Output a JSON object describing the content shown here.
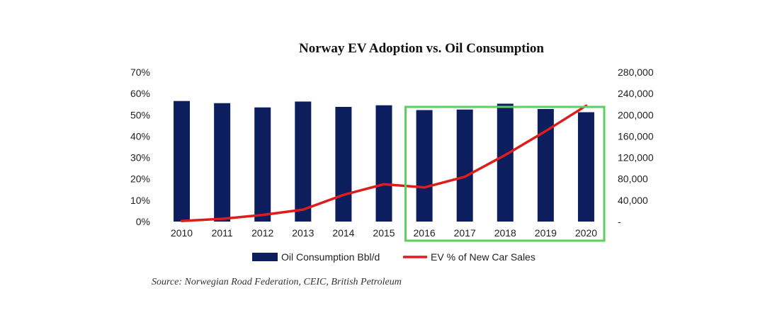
{
  "chart_data": {
    "type": "bar",
    "title": "Norway EV Adoption vs. Oil Consumption",
    "categories": [
      "2010",
      "2011",
      "2012",
      "2013",
      "2014",
      "2015",
      "2016",
      "2017",
      "2018",
      "2019",
      "2020"
    ],
    "series": [
      {
        "name": "Oil Consumption Bbl/d",
        "type": "bar",
        "axis": "right",
        "color": "#0c1e5e",
        "values": [
          226000,
          222000,
          214000,
          225000,
          215000,
          218000,
          209000,
          210000,
          221000,
          211000,
          205000
        ]
      },
      {
        "name": "EV % of New Car Sales",
        "type": "line",
        "axis": "left",
        "color": "#e01b1b",
        "values": [
          0.3,
          1.3,
          3.1,
          5.6,
          12.5,
          17.5,
          16.0,
          21.0,
          31.2,
          42.4,
          54.3
        ]
      }
    ],
    "y_left": {
      "ylim": [
        0,
        70
      ],
      "ticks": [
        0,
        10,
        20,
        30,
        40,
        50,
        60,
        70
      ],
      "tick_labels": [
        "0%",
        "10%",
        "20%",
        "30%",
        "40%",
        "50%",
        "60%",
        "70%"
      ]
    },
    "y_right": {
      "ylim": [
        0,
        280000
      ],
      "ticks": [
        0,
        40000,
        80000,
        120000,
        160000,
        200000,
        240000,
        280000
      ],
      "tick_labels": [
        "-",
        "40,000",
        "80,000",
        "120,000",
        "160,000",
        "200,000",
        "240,000",
        "280,000"
      ]
    },
    "grid": false,
    "legend_position": "bottom",
    "highlight": {
      "from": "2016",
      "to": "2020",
      "color": "#5ccf5c"
    }
  },
  "source": "Source: Norwegian Road Federation, CEIC, British Petroleum"
}
